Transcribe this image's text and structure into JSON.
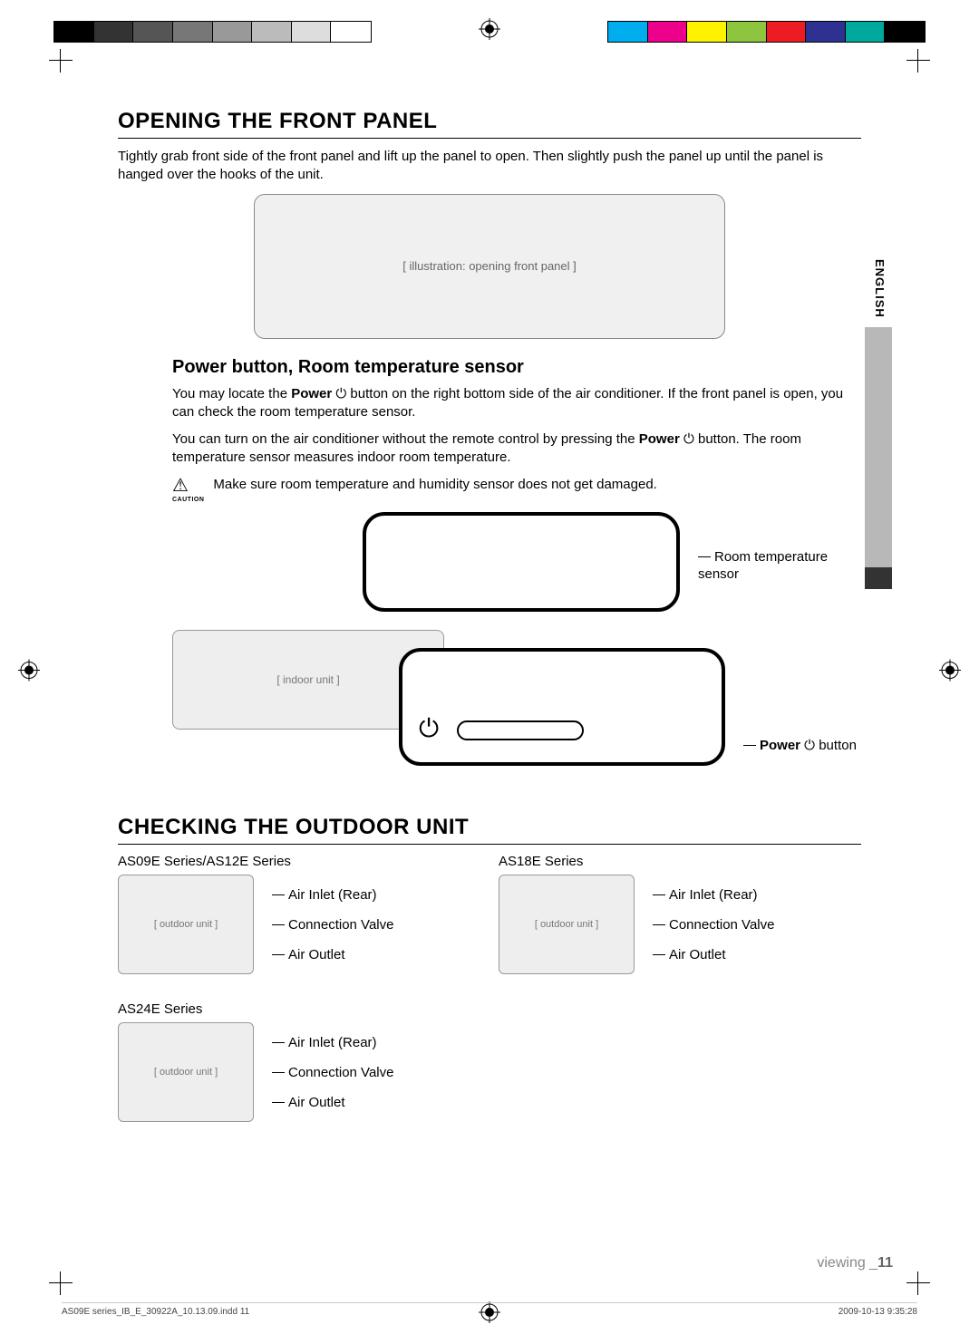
{
  "colorbar": {
    "left_segments": [
      "#000000",
      "#333333",
      "#555555",
      "#777777",
      "#999999",
      "#bbbbbb",
      "#dddddd",
      "#ffffff"
    ],
    "right_segments": [
      "#00aeef",
      "#ec008c",
      "#fff200",
      "#8dc63e",
      "#ed1c24",
      "#2e3192",
      "#00a99d",
      "#000000"
    ]
  },
  "side_tab": {
    "language": "ENGLISH"
  },
  "section1": {
    "heading": "OPENING THE FRONT PANEL",
    "body": "Tightly grab front side of the front panel and lift up the panel to open. Then slightly push the panel up until the panel is hanged over the hooks of the unit.",
    "illustration_alt": "[ illustration: opening front panel ]"
  },
  "section2": {
    "heading": "Power button, Room temperature sensor",
    "p1_a": "You may locate the ",
    "p1_b": "Power",
    "p1_c": " ⏻ button on the right bottom side of the air conditioner. If the front panel is open, you can check the room temperature sensor.",
    "p2_a": "You can turn on the air conditioner without the remote control by pressing the ",
    "p2_b": "Power",
    "p2_c": " ⏻ button. The room temperature sensor measures indoor room temperature.",
    "caution_text": "Make sure room temperature and humidity sensor does not get damaged.",
    "caution_label": "CAUTION",
    "label_sensor": "Room temperature sensor",
    "label_power_a": "Power",
    "label_power_b": " ⏻ button",
    "unit_alt": "[ indoor unit ]"
  },
  "section3": {
    "heading": "CHECKING THE OUTDOOR UNIT",
    "units": [
      {
        "title": "AS09E Series/AS12E Series",
        "l1": "Air Inlet (Rear)",
        "l2": "Connection Valve",
        "l3": "Air Outlet"
      },
      {
        "title": "AS18E Series",
        "l1": "Air Inlet (Rear)",
        "l2": "Connection Valve",
        "l3": "Air Outlet"
      },
      {
        "title": "AS24E Series",
        "l1": "Air Inlet (Rear)",
        "l2": "Connection Valve",
        "l3": "Air Outlet"
      }
    ],
    "thumb_alt": "[ outdoor unit ]"
  },
  "footer": {
    "page_label": "viewing _",
    "page_num": "11",
    "print_left": "AS09E series_IB_E_30922A_10.13.09.indd   11",
    "print_right": "2009-10-13   9:35:28"
  }
}
